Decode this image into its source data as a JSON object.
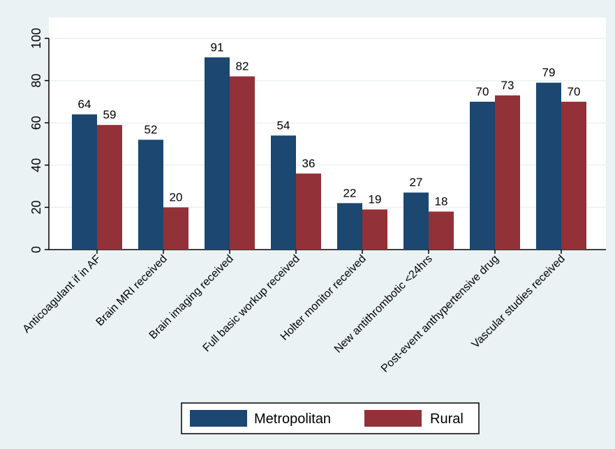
{
  "chart_data": {
    "type": "bar",
    "categories": [
      "Anticoagulant if in AF",
      "Brain MRI received",
      "Brain imaging received",
      "Full basic workup received",
      "Holter monitor received",
      "New antithrombotic <24hrs",
      "Post-event anthypertensive drug",
      "Vascular studies received"
    ],
    "series": [
      {
        "name": "Metropolitan",
        "values": [
          64,
          52,
          91,
          54,
          22,
          27,
          70,
          79
        ]
      },
      {
        "name": "Rural",
        "values": [
          59,
          20,
          82,
          36,
          19,
          18,
          73,
          70
        ]
      }
    ],
    "title": "",
    "xlabel": "",
    "ylabel": "",
    "ylim": [
      0,
      100
    ],
    "yticks": [
      "0",
      "20",
      "40",
      "60",
      "80",
      "100"
    ],
    "grid": true,
    "legend_position": "bottom"
  },
  "colors": {
    "background": "#eaf2f3",
    "plot_background": "#ffffff",
    "metropolitan": "#1b4770",
    "rural": "#923137",
    "axis": "#000000",
    "grid": "#eaf2f3"
  }
}
